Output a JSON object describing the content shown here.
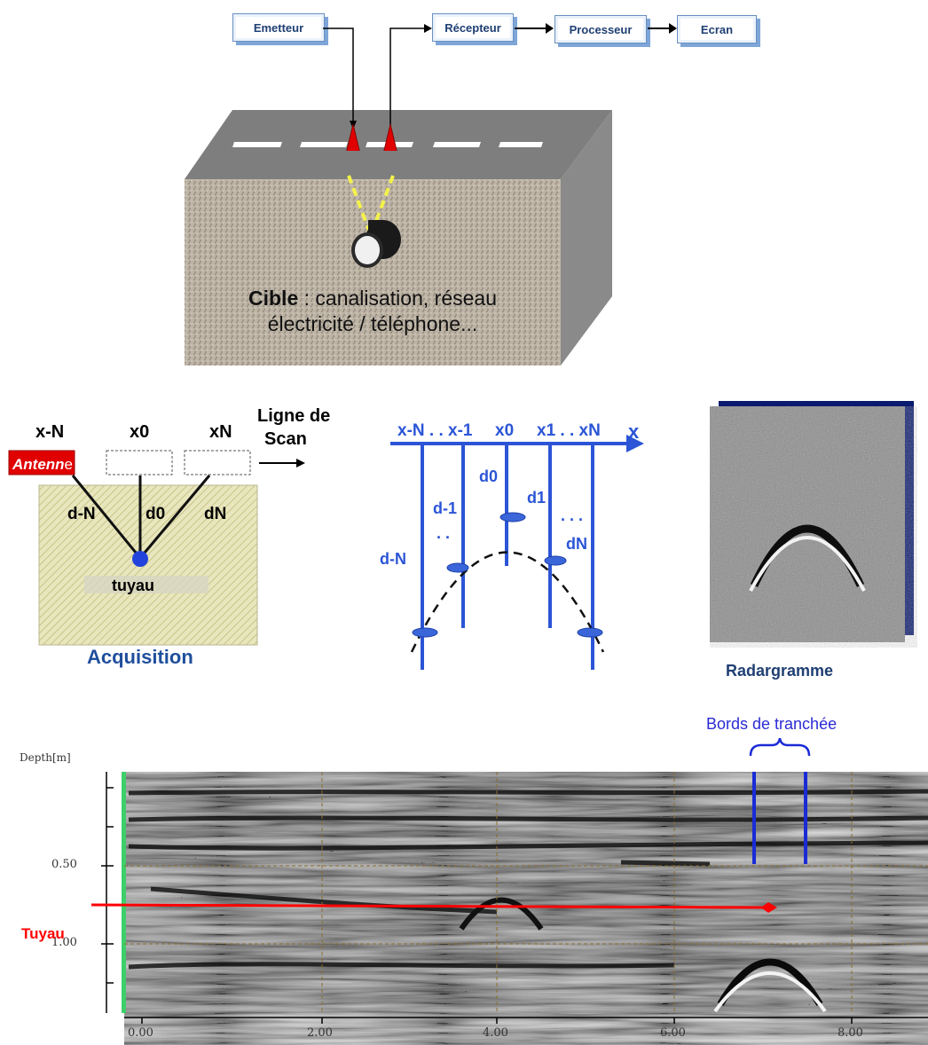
{
  "flow": {
    "emitter": "Emetteur",
    "receiver": "Récepteur",
    "processor": "Processeur",
    "screen": "Ecran"
  },
  "target": {
    "bold": "Cible",
    "sep": " : ",
    "line1_rest": "canalisation, réseau",
    "line2": "électricité / téléphone..."
  },
  "acquisition": {
    "xN_minus": "x-N",
    "x0": "x0",
    "xN": "xN",
    "scan_line_1": "Ligne de",
    "scan_line_2": "Scan",
    "antenna_a": "Antenn",
    "antenna_b": "e",
    "d_minus": "d-N",
    "d0": "d0",
    "dN": "dN",
    "pipe": "tuyau",
    "caption": "Acquisition"
  },
  "hyperbola": {
    "axis_label": "x",
    "ticks": [
      "x-N . . x-1",
      "x0",
      "x1 . . xN"
    ],
    "d0": "d0",
    "d1": "d1",
    "d_1": "d-1",
    "dN": "dN",
    "d_N": "d-N",
    "dots_left": ". .",
    "dots_right": ". . ."
  },
  "radargram": {
    "caption": "Radargramme"
  },
  "profile": {
    "ylabel": "Depth[m]",
    "yticks": [
      "0.50",
      "1.00"
    ],
    "xticks": [
      "0.00",
      "2.00",
      "4.00",
      "6.00",
      "8.00"
    ],
    "trench_label": "Bords de tranchée",
    "pipe_label": "Tuyau"
  },
  "colors": {
    "accent_blue": "#2b55d6",
    "red": "#ff0000",
    "gray_block": "#7d7d7d"
  }
}
